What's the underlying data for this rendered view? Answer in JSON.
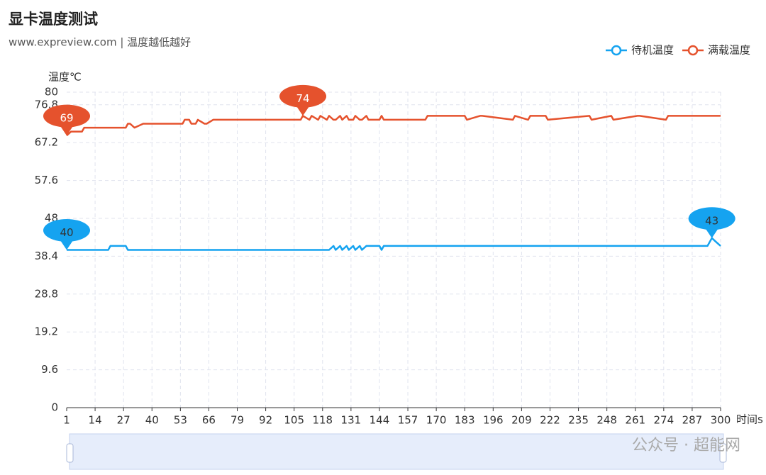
{
  "chart_data": {
    "type": "line",
    "title": "显卡温度测试",
    "subtitle": "www.expreview.com | 温度越低越好",
    "y_label": "温度℃",
    "x_label": "时间s",
    "watermark": "公众号 · 超能网",
    "x": [
      1,
      3,
      8,
      9,
      20,
      21,
      28,
      29,
      30,
      32,
      36,
      54,
      55,
      57,
      58,
      60,
      61,
      64,
      65,
      68,
      108,
      109,
      112,
      113,
      116,
      117,
      120,
      121,
      123,
      124,
      126,
      127,
      129,
      130,
      132,
      133,
      135,
      136,
      138,
      139,
      144,
      145,
      146,
      147,
      155,
      156,
      165,
      166,
      183,
      184,
      190,
      191,
      205,
      206,
      212,
      213,
      220,
      221,
      240,
      241,
      250,
      251,
      262,
      263,
      275,
      276,
      294,
      296,
      298,
      300
    ],
    "series": [
      {
        "name": "待机温度",
        "color": "#15a3f0",
        "values": [
          40,
          40,
          40,
          40,
          40,
          41,
          41,
          40,
          40,
          40,
          40,
          40,
          40,
          40,
          40,
          40,
          40,
          40,
          40,
          40,
          40,
          40,
          40,
          40,
          40,
          40,
          40,
          40,
          41,
          40,
          41,
          40,
          41,
          40,
          41,
          40,
          41,
          40,
          41,
          41,
          41,
          40,
          41,
          41,
          41,
          41,
          41,
          41,
          41,
          41,
          41,
          41,
          41,
          41,
          41,
          41,
          41,
          41,
          41,
          41,
          41,
          41,
          41,
          41,
          41,
          41,
          41,
          43,
          42,
          41
        ],
        "mark_points": [
          {
            "x": 1,
            "value": 40
          },
          {
            "x": 296,
            "value": 43
          }
        ]
      },
      {
        "name": "满载温度",
        "color": "#e5522d",
        "values": [
          69,
          70,
          70,
          71,
          71,
          71,
          71,
          72,
          72,
          71,
          72,
          72,
          73,
          73,
          72,
          72,
          73,
          72,
          72,
          73,
          73,
          74,
          73,
          74,
          73,
          74,
          73,
          74,
          73,
          73,
          74,
          73,
          74,
          73,
          73,
          74,
          73,
          73,
          74,
          73,
          73,
          74,
          73,
          73,
          73,
          73,
          73,
          74,
          74,
          73,
          74,
          74,
          73,
          74,
          73,
          74,
          74,
          73,
          74,
          73,
          74,
          73,
          74,
          74,
          73,
          74,
          74,
          74,
          74,
          74
        ],
        "mark_points": [
          {
            "x": 1,
            "value": 69
          },
          {
            "x": 109,
            "value": 74
          }
        ]
      }
    ],
    "xlim": [
      1,
      300
    ],
    "xticks": [
      1,
      14,
      27,
      40,
      53,
      66,
      79,
      92,
      105,
      118,
      131,
      144,
      157,
      170,
      183,
      196,
      209,
      222,
      235,
      248,
      261,
      274,
      287,
      300
    ],
    "ylim": [
      0,
      80
    ],
    "yticks": [
      0,
      9.6,
      19.2,
      28.8,
      38.4,
      48,
      57.6,
      67.2,
      76.8,
      80
    ],
    "grid": true,
    "legend_position": "top-right"
  }
}
